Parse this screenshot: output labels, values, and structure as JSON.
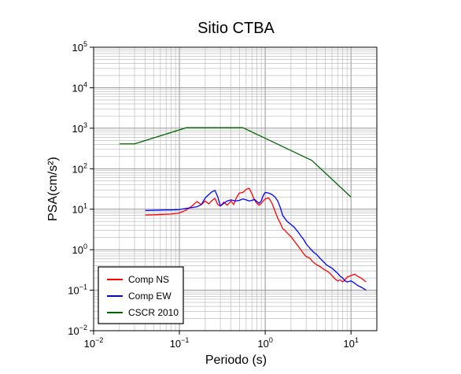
{
  "chart_data": {
    "type": "line",
    "title": "Sitio CTBA",
    "xlabel": "Periodo (s)",
    "ylabel": "PSA(cm/s²)",
    "xscale": "log",
    "yscale": "log",
    "xlim": [
      0.01,
      20
    ],
    "ylim": [
      0.01,
      100000
    ],
    "x_ticks": [
      {
        "base": "10",
        "exp": "−2",
        "value": 0.01
      },
      {
        "base": "10",
        "exp": "−1",
        "value": 0.1
      },
      {
        "base": "10",
        "exp": "0",
        "value": 1
      },
      {
        "base": "10",
        "exp": "1",
        "value": 10
      }
    ],
    "y_ticks": [
      {
        "base": "10",
        "exp": "−2",
        "value": 0.01
      },
      {
        "base": "10",
        "exp": "−1",
        "value": 0.1
      },
      {
        "base": "10",
        "exp": "0",
        "value": 1
      },
      {
        "base": "10",
        "exp": "1",
        "value": 10
      },
      {
        "base": "10",
        "exp": "2",
        "value": 100
      },
      {
        "base": "10",
        "exp": "3",
        "value": 1000
      },
      {
        "base": "10",
        "exp": "4",
        "value": 10000
      },
      {
        "base": "10",
        "exp": "5",
        "value": 100000
      }
    ],
    "grid": true,
    "legend_position": "bottom-left",
    "series": [
      {
        "name": "Comp NS",
        "color": "#ff0000",
        "points": [
          [
            0.04,
            7.2
          ],
          [
            0.05,
            7.3
          ],
          [
            0.06,
            7.4
          ],
          [
            0.07,
            7.5
          ],
          [
            0.08,
            7.6
          ],
          [
            0.1,
            8.1
          ],
          [
            0.12,
            9.5
          ],
          [
            0.14,
            12
          ],
          [
            0.16,
            15.5
          ],
          [
            0.18,
            13
          ],
          [
            0.2,
            16
          ],
          [
            0.22,
            13.5
          ],
          [
            0.24,
            16.5
          ],
          [
            0.26,
            18.5
          ],
          [
            0.28,
            13
          ],
          [
            0.3,
            12
          ],
          [
            0.33,
            15
          ],
          [
            0.36,
            12.5
          ],
          [
            0.4,
            16
          ],
          [
            0.43,
            13
          ],
          [
            0.46,
            19
          ],
          [
            0.5,
            25
          ],
          [
            0.55,
            26
          ],
          [
            0.6,
            31
          ],
          [
            0.65,
            33
          ],
          [
            0.7,
            24
          ],
          [
            0.75,
            17
          ],
          [
            0.8,
            14
          ],
          [
            0.85,
            12.5
          ],
          [
            0.9,
            14
          ],
          [
            0.95,
            16
          ],
          [
            1.0,
            18
          ],
          [
            1.1,
            19
          ],
          [
            1.2,
            14
          ],
          [
            1.3,
            9
          ],
          [
            1.4,
            6
          ],
          [
            1.5,
            4.5
          ],
          [
            1.6,
            3.3
          ],
          [
            1.7,
            3.0
          ],
          [
            1.8,
            2.6
          ],
          [
            2.0,
            2.1
          ],
          [
            2.2,
            1.6
          ],
          [
            2.4,
            1.25
          ],
          [
            2.6,
            1.0
          ],
          [
            2.8,
            0.8
          ],
          [
            3.0,
            0.68
          ],
          [
            3.3,
            0.62
          ],
          [
            3.6,
            0.5
          ],
          [
            4.0,
            0.42
          ],
          [
            4.4,
            0.38
          ],
          [
            4.8,
            0.33
          ],
          [
            5.2,
            0.3
          ],
          [
            5.6,
            0.27
          ],
          [
            6.0,
            0.23
          ],
          [
            6.5,
            0.19
          ],
          [
            7.0,
            0.17
          ],
          [
            7.5,
            0.18
          ],
          [
            8.0,
            0.16
          ],
          [
            8.5,
            0.18
          ],
          [
            9.0,
            0.21
          ],
          [
            10.0,
            0.23
          ],
          [
            11.0,
            0.25
          ],
          [
            12.0,
            0.22
          ],
          [
            13.0,
            0.2
          ],
          [
            14.0,
            0.18
          ],
          [
            15.0,
            0.16
          ]
        ]
      },
      {
        "name": "Comp EW",
        "color": "#0000ff",
        "points": [
          [
            0.04,
            9.3
          ],
          [
            0.05,
            9.4
          ],
          [
            0.06,
            9.5
          ],
          [
            0.07,
            9.6
          ],
          [
            0.08,
            9.6
          ],
          [
            0.1,
            9.8
          ],
          [
            0.12,
            10.5
          ],
          [
            0.14,
            11
          ],
          [
            0.16,
            11.5
          ],
          [
            0.18,
            13
          ],
          [
            0.2,
            19
          ],
          [
            0.22,
            23
          ],
          [
            0.24,
            27
          ],
          [
            0.26,
            29
          ],
          [
            0.28,
            20
          ],
          [
            0.3,
            12
          ],
          [
            0.33,
            14
          ],
          [
            0.36,
            16
          ],
          [
            0.4,
            17
          ],
          [
            0.45,
            16
          ],
          [
            0.5,
            16.5
          ],
          [
            0.55,
            18
          ],
          [
            0.6,
            17
          ],
          [
            0.65,
            16
          ],
          [
            0.7,
            16.5
          ],
          [
            0.75,
            17.5
          ],
          [
            0.8,
            15.5
          ],
          [
            0.85,
            14
          ],
          [
            0.9,
            16
          ],
          [
            0.95,
            22
          ],
          [
            1.0,
            26
          ],
          [
            1.1,
            25
          ],
          [
            1.2,
            23
          ],
          [
            1.3,
            20
          ],
          [
            1.4,
            16
          ],
          [
            1.5,
            11
          ],
          [
            1.6,
            7
          ],
          [
            1.8,
            5
          ],
          [
            2.0,
            4.2
          ],
          [
            2.2,
            3.5
          ],
          [
            2.4,
            2.8
          ],
          [
            2.6,
            2.2
          ],
          [
            2.8,
            1.8
          ],
          [
            3.0,
            1.4
          ],
          [
            3.3,
            1.1
          ],
          [
            3.6,
            0.9
          ],
          [
            4.0,
            0.75
          ],
          [
            4.4,
            0.6
          ],
          [
            4.8,
            0.5
          ],
          [
            5.2,
            0.42
          ],
          [
            5.6,
            0.38
          ],
          [
            6.0,
            0.35
          ],
          [
            6.5,
            0.3
          ],
          [
            7.0,
            0.26
          ],
          [
            7.5,
            0.22
          ],
          [
            8.0,
            0.2
          ],
          [
            8.5,
            0.17
          ],
          [
            9.0,
            0.16
          ],
          [
            10.0,
            0.17
          ],
          [
            11.0,
            0.15
          ],
          [
            12.0,
            0.13
          ],
          [
            13.0,
            0.12
          ],
          [
            14.0,
            0.11
          ],
          [
            15.0,
            0.1
          ]
        ]
      },
      {
        "name": "CSCR 2010",
        "color": "#006400",
        "points": [
          [
            0.02,
            410
          ],
          [
            0.03,
            410
          ],
          [
            0.12,
            1030
          ],
          [
            0.55,
            1030
          ],
          [
            3.5,
            160
          ],
          [
            10.0,
            20
          ]
        ]
      }
    ]
  }
}
